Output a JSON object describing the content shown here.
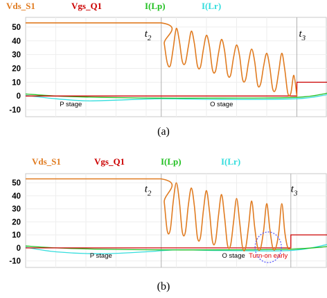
{
  "chart_data": [
    {
      "type": "line",
      "caption": "(a)",
      "legend": [
        {
          "name": "Vds_S1",
          "color": "#e07b20"
        },
        {
          "name": "Vgs_Q1",
          "color": "#cc0000"
        },
        {
          "name": "I(Lp)",
          "color": "#22c022"
        },
        {
          "name": "I(Lr)",
          "color": "#33dddd"
        }
      ],
      "yticks": [
        "50",
        "40",
        "30",
        "20",
        "10",
        "0",
        "-10"
      ],
      "ylim": [
        -15,
        57
      ],
      "xlim": [
        0,
        100
      ],
      "grid": true,
      "markers": [
        {
          "sub": "2",
          "x": 45
        },
        {
          "sub": "3",
          "x": 90
        }
      ],
      "stage_labels": [
        {
          "text": "P stage",
          "x": 15
        },
        {
          "text": "O stage",
          "x": 65
        }
      ],
      "annotation": "",
      "series": [
        {
          "name": "Vds_S1",
          "x": [
            0,
            45,
            46,
            47,
            48,
            49,
            50,
            51,
            52,
            53,
            54,
            55,
            56,
            57,
            58,
            59,
            60,
            61,
            62,
            63,
            64,
            65,
            66,
            67,
            68,
            69,
            70,
            71,
            72,
            73,
            74,
            75,
            76,
            77,
            78,
            79,
            80,
            81,
            82,
            83,
            84,
            85,
            86,
            87,
            88,
            89,
            90
          ],
          "values": [
            53,
            53,
            38,
            24,
            22,
            35,
            49,
            40,
            25,
            24,
            36,
            47,
            38,
            22,
            21,
            34,
            44,
            36,
            19,
            18,
            31,
            41,
            33,
            16,
            15,
            28,
            37,
            29,
            12,
            12,
            25,
            34,
            25,
            8,
            9,
            22,
            31,
            21,
            5,
            5,
            18,
            31,
            19,
            2,
            2,
            15,
            0
          ]
        },
        {
          "name": "Vgs_Q1",
          "x": [
            0,
            90,
            90.01,
            100
          ],
          "values": [
            0,
            0,
            10,
            10
          ]
        },
        {
          "name": "I(Lp)",
          "x": [
            0,
            10,
            25,
            45,
            65,
            90,
            100
          ],
          "values": [
            1.5,
            0,
            -1,
            -1.5,
            -1.5,
            -1,
            2
          ]
        },
        {
          "name": "I(Lr)",
          "x": [
            0,
            10,
            20,
            30,
            45,
            65,
            90,
            100
          ],
          "values": [
            0.5,
            -2,
            -3.5,
            -3,
            -2,
            -2.5,
            -2,
            1
          ]
        }
      ]
    },
    {
      "type": "line",
      "caption": "(b)",
      "legend": [
        {
          "name": "Vds_S1",
          "color": "#e07b20"
        },
        {
          "name": "Vgs_Q1",
          "color": "#cc0000"
        },
        {
          "name": "I(Lp)",
          "color": "#22c022"
        },
        {
          "name": "I(Lr)",
          "color": "#33dddd"
        }
      ],
      "yticks": [
        "50",
        "40",
        "30",
        "20",
        "10",
        "0",
        "-10"
      ],
      "ylim": [
        -15,
        57
      ],
      "xlim": [
        0,
        100
      ],
      "grid": true,
      "markers": [
        {
          "sub": "2",
          "x": 45
        },
        {
          "sub": "3",
          "x": 88
        }
      ],
      "stage_labels": [
        {
          "text": "P stage",
          "x": 25
        },
        {
          "text": "O stage",
          "x": 69
        }
      ],
      "annotation": "Turn-on early",
      "series": [
        {
          "name": "Vds_S1",
          "x": [
            0,
            45,
            46,
            47,
            48,
            49,
            50,
            51,
            52,
            53,
            54,
            55,
            56,
            57,
            58,
            59,
            60,
            61,
            62,
            63,
            64,
            65,
            66,
            67,
            68,
            69,
            70,
            71,
            72,
            73,
            74,
            75,
            76,
            77,
            78,
            79,
            80,
            81,
            82,
            83,
            84,
            85,
            86,
            87,
            88
          ],
          "values": [
            53,
            53,
            35,
            13,
            14,
            36,
            50,
            36,
            12,
            12,
            33,
            46,
            32,
            8,
            8,
            29,
            44,
            28,
            5,
            5,
            25,
            41,
            24,
            2,
            2,
            20,
            38,
            20,
            0,
            0,
            17,
            36,
            16,
            0,
            0,
            14,
            34,
            15,
            0,
            0,
            12,
            34,
            12,
            0,
            0
          ]
        },
        {
          "name": "Vgs_Q1",
          "x": [
            0,
            88,
            88.01,
            100
          ],
          "values": [
            0,
            0,
            10,
            10
          ]
        },
        {
          "name": "I(Lp)",
          "x": [
            0,
            10,
            25,
            45,
            65,
            88,
            100
          ],
          "values": [
            1.5,
            0,
            -1,
            -1.5,
            -1.5,
            -1,
            1
          ]
        },
        {
          "name": "I(Lr)",
          "x": [
            0,
            10,
            25,
            40,
            50,
            65,
            88,
            100
          ],
          "values": [
            0.5,
            -3,
            -4.5,
            -3,
            -1.5,
            -2,
            -2,
            2.5
          ]
        }
      ]
    }
  ]
}
